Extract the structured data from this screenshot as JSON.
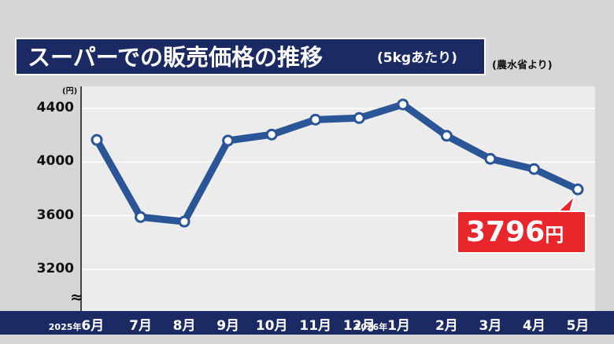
{
  "title": {
    "main": "スーパーでの販売価格の推移",
    "sub": "(5kgあたり)"
  },
  "source": "(農水省より)",
  "colors": {
    "navy": "#1c2a63",
    "line": "#2a5596",
    "callout": "#e8262b",
    "background": "#d6d6d6",
    "plot": "#ececec"
  },
  "chart_data": {
    "type": "line",
    "ylabel": "(円)",
    "ylim": [
      3000,
      4520
    ],
    "yticks": [
      3200,
      3600,
      4000,
      4400
    ],
    "axis_break": "≈",
    "categories": [
      {
        "year": "2025年",
        "month": "6月"
      },
      {
        "year": "",
        "month": "7月"
      },
      {
        "year": "",
        "month": "8月"
      },
      {
        "year": "",
        "month": "9月"
      },
      {
        "year": "",
        "month": "10月"
      },
      {
        "year": "",
        "month": "11月"
      },
      {
        "year": "",
        "month": "12月"
      },
      {
        "year": "2026年",
        "month": "1月"
      },
      {
        "year": "",
        "month": "2月"
      },
      {
        "year": "",
        "month": "3月"
      },
      {
        "year": "",
        "month": "4月"
      },
      {
        "year": "",
        "month": "5月"
      }
    ],
    "values": [
      4165,
      3590,
      3556,
      4160,
      4205,
      4316,
      4328,
      4429,
      4196,
      4024,
      3948,
      3796
    ],
    "grid": true,
    "annotation": {
      "value": "3796",
      "unit": "円",
      "index": 11
    }
  }
}
